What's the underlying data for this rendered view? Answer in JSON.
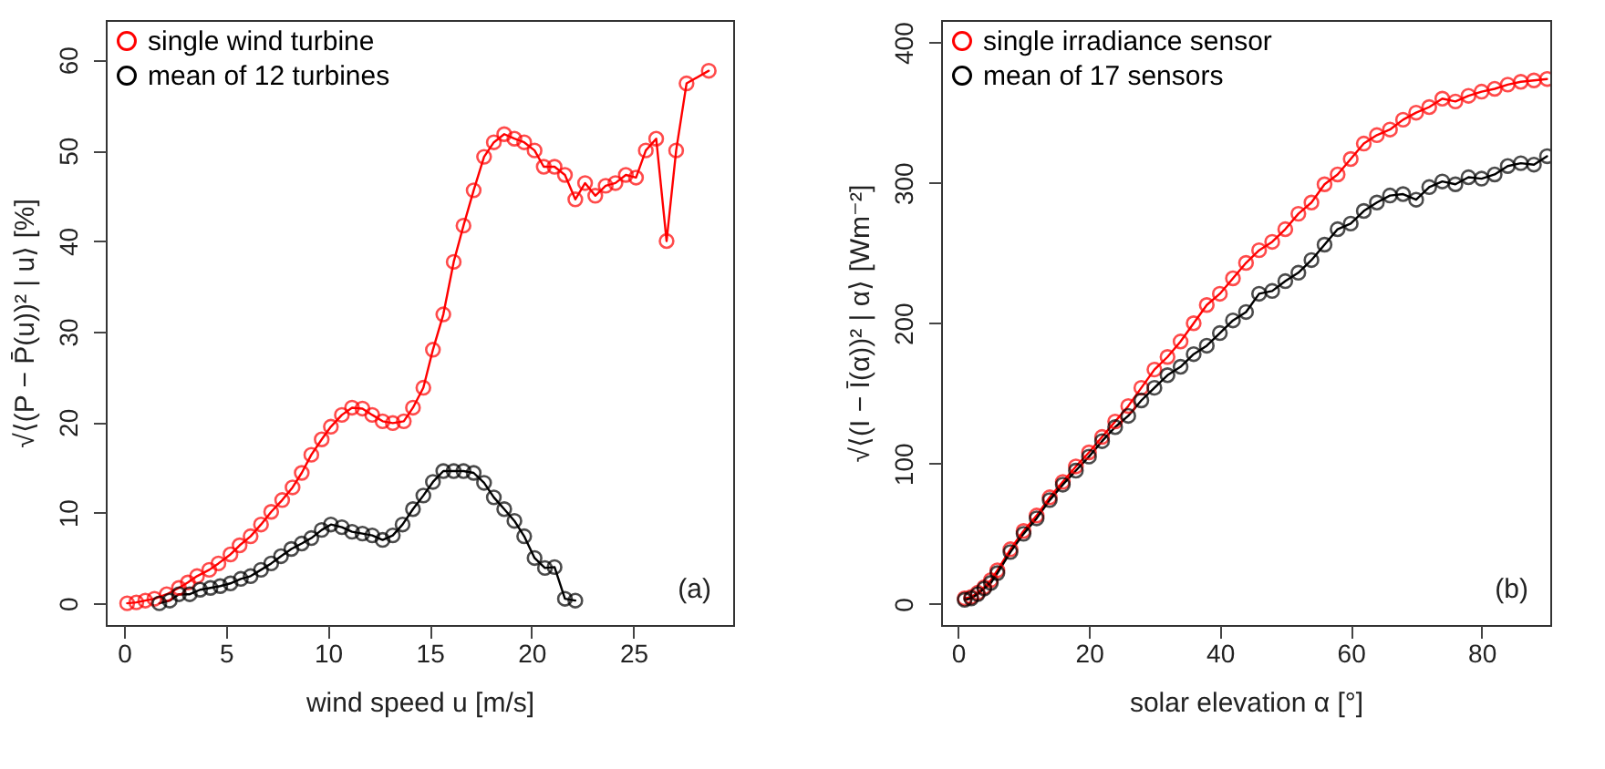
{
  "chart_data": [
    {
      "type": "line",
      "xlabel": "wind speed u [m/s]",
      "ylabel": "√⟨(P − P̄(u))² | u⟩ [%]",
      "annotations": [
        "(a)"
      ],
      "marker": "circle",
      "line_style": "solid",
      "legend": "top left",
      "grid": false,
      "xlim": [
        -0.9,
        29.9
      ],
      "xticks": [
        0,
        5,
        10,
        15,
        20,
        25
      ],
      "ylim": [
        -2.4,
        64.4
      ],
      "yticks": [
        0,
        10,
        20,
        30,
        40,
        50,
        60
      ],
      "series": [
        {
          "name": "single wind turbine",
          "color": "#ff0000",
          "x": [
            0.15,
            0.6,
            1.04,
            1.49,
            2.09,
            2.69,
            3.13,
            3.58,
            4.18,
            4.63,
            5.22,
            5.67,
            6.21,
            6.72,
            7.22,
            7.76,
            8.27,
            8.72,
            9.19,
            9.7,
            10.15,
            10.69,
            11.19,
            11.7,
            12.18,
            12.69,
            13.19,
            13.73,
            14.18,
            14.69,
            15.16,
            15.67,
            16.18,
            16.66,
            17.16,
            17.67,
            18.15,
            18.66,
            19.16,
            19.64,
            20.15,
            20.6,
            21.13,
            21.64,
            22.15,
            22.63,
            23.13,
            23.64,
            24.12,
            24.63,
            25.13,
            25.61,
            26.12,
            26.63,
            27.1,
            27.61,
            28.7
          ],
          "values": [
            0,
            0.1,
            0.3,
            0.5,
            1.0,
            1.7,
            2.3,
            3.0,
            3.7,
            4.4,
            5.4,
            6.4,
            7.4,
            8.7,
            10.1,
            11.4,
            12.8,
            14.4,
            16.4,
            18.1,
            19.5,
            20.8,
            21.6,
            21.5,
            20.8,
            20.1,
            19.9,
            20.1,
            21.6,
            23.8,
            28.0,
            31.9,
            37.7,
            41.7,
            45.6,
            49.3,
            50.9,
            51.8,
            51.3,
            50.9,
            50.0,
            48.2,
            48.2,
            47.3,
            44.6,
            46.4,
            45.0,
            46.1,
            46.4,
            47.3,
            47.0,
            50.0,
            51.3,
            40.0,
            50.0,
            57.4,
            58.8
          ]
        },
        {
          "name": "mean of 12 turbines",
          "color": "#000000",
          "x": [
            1.73,
            2.24,
            2.69,
            3.22,
            3.73,
            4.24,
            4.72,
            5.22,
            5.73,
            6.21,
            6.72,
            7.22,
            7.7,
            8.21,
            8.72,
            9.19,
            9.7,
            10.15,
            10.69,
            11.19,
            11.7,
            12.18,
            12.69,
            13.19,
            13.67,
            14.18,
            14.69,
            15.16,
            15.67,
            16.18,
            16.66,
            17.16,
            17.67,
            18.15,
            18.66,
            19.16,
            19.64,
            20.15,
            20.66,
            21.13,
            21.64,
            22.15
          ],
          "values": [
            0,
            0.3,
            1.0,
            1.0,
            1.5,
            1.7,
            1.9,
            2.2,
            2.7,
            3.0,
            3.7,
            4.4,
            5.2,
            6.0,
            6.6,
            7.2,
            8.1,
            8.7,
            8.4,
            7.9,
            7.7,
            7.5,
            7.0,
            7.5,
            8.7,
            10.4,
            11.9,
            13.4,
            14.6,
            14.6,
            14.6,
            14.4,
            13.3,
            11.7,
            10.4,
            9.1,
            7.4,
            5.0,
            3.9,
            4.0,
            0.5,
            0.3
          ]
        }
      ]
    },
    {
      "type": "line",
      "xlabel": "solar elevation α [°]",
      "ylabel": "√⟨(I − Ī(α))² | α⟩ [Wm⁻²]",
      "annotations": [
        "(b)"
      ],
      "marker": "circle",
      "line_style": "solid",
      "legend": "top left",
      "grid": false,
      "xlim": [
        -2.6,
        90.5
      ],
      "xticks": [
        0,
        20,
        40,
        60,
        80
      ],
      "ylim": [
        -15,
        416
      ],
      "yticks": [
        0,
        100,
        200,
        300,
        400
      ],
      "series": [
        {
          "name": "single irradiance sensor",
          "color": "#ff0000",
          "x": [
            1,
            2,
            3,
            4,
            5,
            6,
            8,
            10,
            12,
            14,
            16,
            18,
            20,
            22,
            24,
            26,
            28,
            30,
            32,
            34,
            36,
            38,
            40,
            42,
            44,
            46,
            48,
            50,
            52,
            54,
            56,
            58,
            60,
            62,
            64,
            66,
            68,
            70,
            72,
            74,
            76,
            78,
            80,
            82,
            84,
            86,
            88,
            90
          ],
          "values": [
            4,
            5,
            8,
            12,
            17,
            24,
            39,
            52,
            63,
            76,
            87,
            98,
            108,
            119,
            130,
            141,
            154,
            167,
            176,
            187,
            200,
            213,
            221,
            232,
            243,
            252,
            258,
            267,
            278,
            286,
            299,
            306,
            317,
            328,
            334,
            338,
            345,
            350,
            354,
            360,
            358,
            362,
            365,
            367,
            370,
            372,
            373,
            374
          ]
        },
        {
          "name": "mean of 17 sensors",
          "color": "#000000",
          "x": [
            1,
            2,
            3,
            4,
            5,
            6,
            8,
            10,
            12,
            14,
            16,
            18,
            20,
            22,
            24,
            26,
            28,
            30,
            32,
            34,
            36,
            38,
            40,
            42,
            44,
            46,
            48,
            50,
            52,
            54,
            56,
            58,
            60,
            62,
            64,
            66,
            68,
            70,
            72,
            74,
            76,
            78,
            80,
            82,
            84,
            86,
            88,
            90
          ],
          "values": [
            3,
            4,
            7,
            11,
            15,
            22,
            37,
            50,
            61,
            74,
            85,
            95,
            105,
            116,
            126,
            134,
            145,
            154,
            163,
            169,
            178,
            184,
            193,
            202,
            208,
            221,
            223,
            230,
            236,
            245,
            256,
            267,
            271,
            280,
            286,
            291,
            292,
            288,
            297,
            301,
            299,
            304,
            303,
            306,
            312,
            314,
            313,
            319
          ]
        }
      ]
    }
  ]
}
